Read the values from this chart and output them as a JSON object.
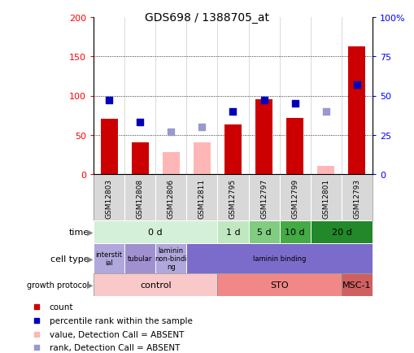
{
  "title": "GDS698 / 1388705_at",
  "samples": [
    "GSM12803",
    "GSM12808",
    "GSM12806",
    "GSM12811",
    "GSM12795",
    "GSM12797",
    "GSM12799",
    "GSM12801",
    "GSM12793"
  ],
  "count_values": [
    70,
    40,
    0,
    0,
    63,
    95,
    71,
    0,
    163
  ],
  "count_absent": [
    0,
    0,
    28,
    40,
    0,
    0,
    0,
    10,
    0
  ],
  "rank_values": [
    47,
    33,
    0,
    0,
    40,
    47,
    45,
    0,
    57
  ],
  "rank_absent": [
    0,
    0,
    27,
    30,
    0,
    0,
    0,
    40,
    0
  ],
  "ylim_left": [
    0,
    200
  ],
  "ylim_right": [
    0,
    100
  ],
  "yticks_left": [
    0,
    50,
    100,
    150,
    200
  ],
  "yticks_right": [
    0,
    25,
    50,
    75,
    100
  ],
  "ytick_labels_right": [
    "0",
    "25",
    "50",
    "75",
    "100%"
  ],
  "time_segments": [
    {
      "label": "0 d",
      "span": [
        0,
        4
      ],
      "color": "#d4f0d8"
    },
    {
      "label": "1 d",
      "span": [
        4,
        5
      ],
      "color": "#c0e8c0"
    },
    {
      "label": "5 d",
      "span": [
        5,
        6
      ],
      "color": "#80cc80"
    },
    {
      "label": "10 d",
      "span": [
        6,
        7
      ],
      "color": "#44aa44"
    },
    {
      "label": "20 d",
      "span": [
        7,
        9
      ],
      "color": "#22882a"
    }
  ],
  "cell_segments": [
    {
      "label": "interstit\nial",
      "span": [
        0,
        1
      ],
      "color": "#b0a8dc"
    },
    {
      "label": "tubular",
      "span": [
        1,
        2
      ],
      "color": "#a090d0"
    },
    {
      "label": "laminin\nnon-bindi\nng",
      "span": [
        2,
        3
      ],
      "color": "#b0a8dc"
    },
    {
      "label": "laminin binding",
      "span": [
        3,
        9
      ],
      "color": "#7b6ccc"
    }
  ],
  "growth_segments": [
    {
      "label": "control",
      "span": [
        0,
        4
      ],
      "color": "#f9c8c8"
    },
    {
      "label": "STO",
      "span": [
        4,
        8
      ],
      "color": "#f08888"
    },
    {
      "label": "MSC-1",
      "span": [
        8,
        9
      ],
      "color": "#d06060"
    }
  ],
  "bar_color_count": "#cc0000",
  "bar_color_absent": "#ffb6b6",
  "dot_color_rank": "#0000bb",
  "dot_color_rank_absent": "#9999cc",
  "bg_color": "#d8d8d8",
  "legend_items": [
    {
      "color": "#cc0000",
      "marker": "s",
      "label": "count"
    },
    {
      "color": "#0000bb",
      "marker": "s",
      "label": "percentile rank within the sample"
    },
    {
      "color": "#ffb6b6",
      "marker": "s",
      "label": "value, Detection Call = ABSENT"
    },
    {
      "color": "#9999cc",
      "marker": "s",
      "label": "rank, Detection Call = ABSENT"
    }
  ]
}
